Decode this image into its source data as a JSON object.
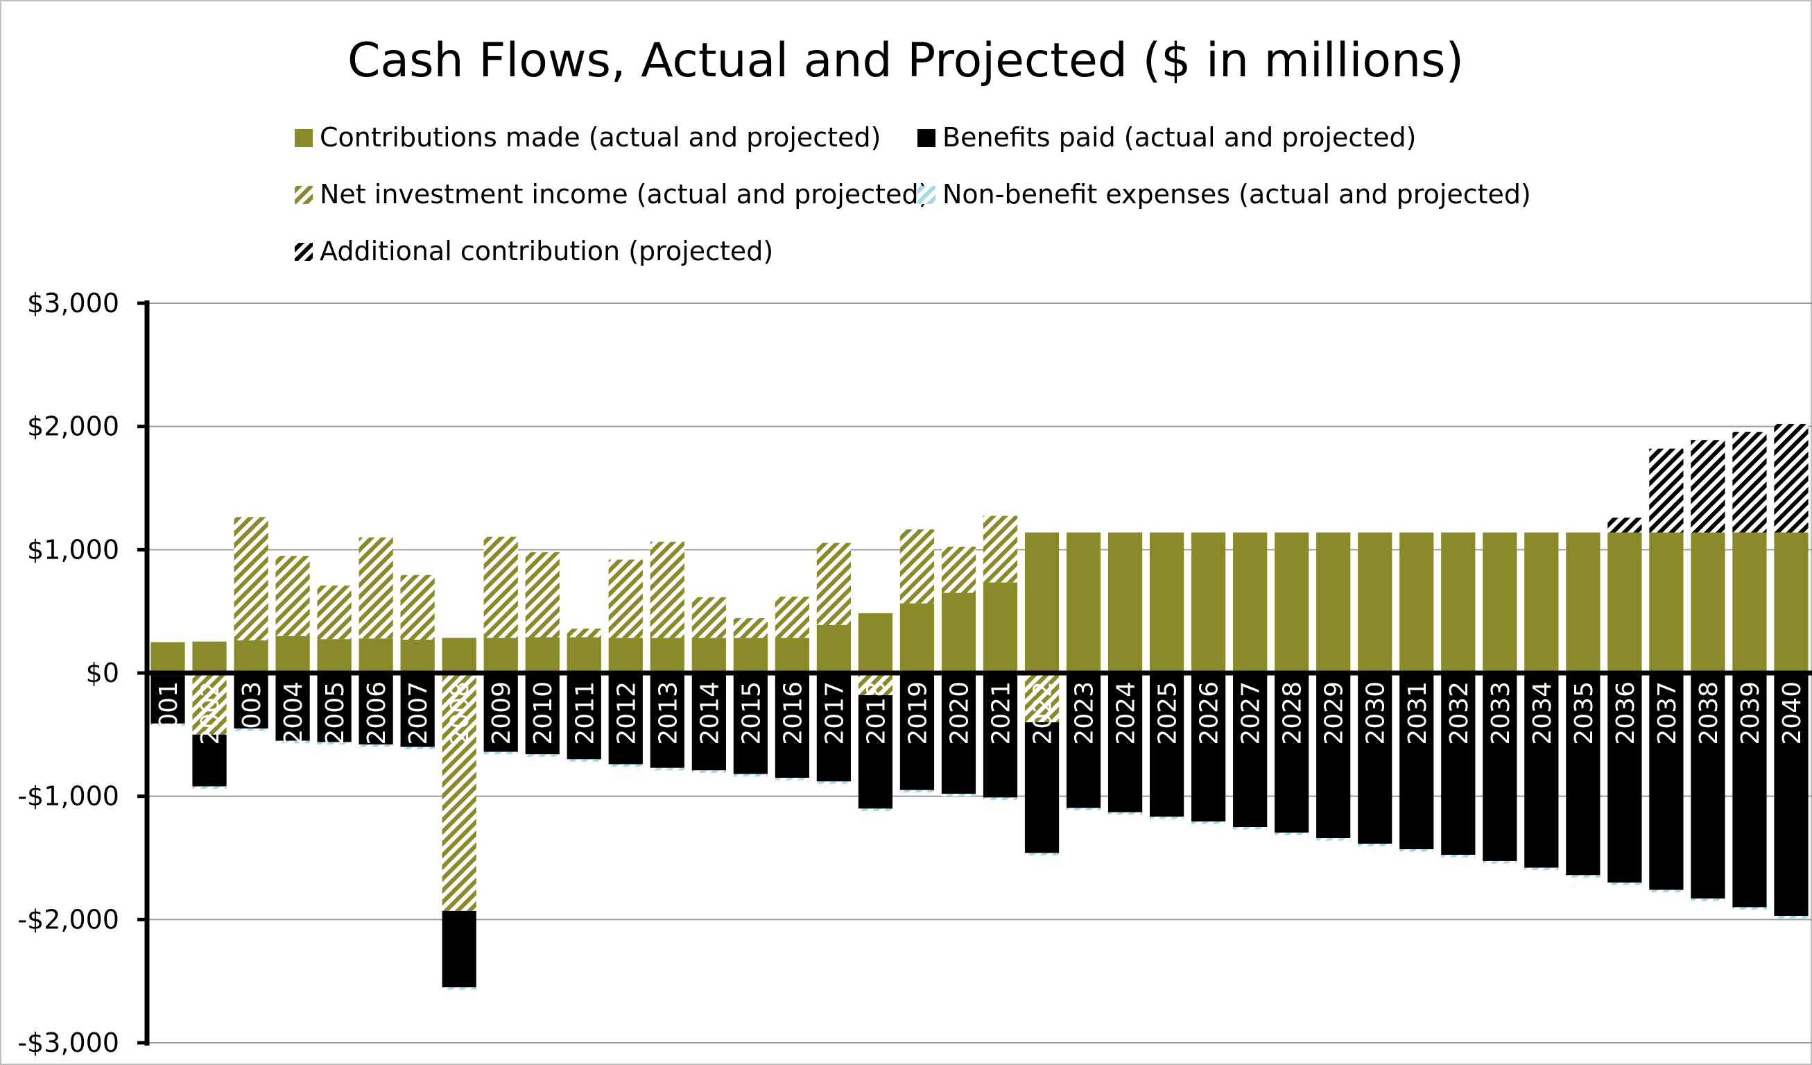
{
  "chart_data": {
    "type": "bar",
    "stacked": true,
    "title": "Cash Flows, Actual and Projected ($ in millions)",
    "xlabel": "",
    "ylabel": "",
    "ylim": [
      -3000,
      3000
    ],
    "yticks": [
      3000,
      2000,
      1000,
      0,
      -1000,
      -2000,
      -3000
    ],
    "ytick_labels": [
      "$3,000",
      "$2,000",
      "$1,000",
      "$0",
      "-$1,000",
      "-$2,000",
      "-$3,000"
    ],
    "grid": true,
    "legend_position": "top",
    "categories": [
      "2001",
      "2002",
      "2003",
      "2004",
      "2005",
      "2006",
      "2007",
      "2008",
      "2009",
      "2010",
      "2011",
      "2012",
      "2013",
      "2014",
      "2015",
      "2016",
      "2017",
      "2018",
      "2019",
      "2020",
      "2021",
      "2022",
      "2023",
      "2024",
      "2025",
      "2026",
      "2027",
      "2028",
      "2029",
      "2030",
      "2031",
      "2032",
      "2033",
      "2034",
      "2035",
      "2036",
      "2037",
      "2038",
      "2039",
      "2040"
    ],
    "series": [
      {
        "name": "Contributions made (actual and projected)",
        "color": "#8a8a2a",
        "pattern": "solid",
        "values": [
          250,
          255,
          265,
          300,
          275,
          280,
          270,
          285,
          285,
          290,
          290,
          285,
          285,
          285,
          285,
          285,
          390,
          485,
          565,
          650,
          735,
          1140,
          1140,
          1140,
          1140,
          1140,
          1140,
          1140,
          1140,
          1140,
          1140,
          1140,
          1140,
          1140,
          1140,
          1140,
          1140,
          1140,
          1140,
          1140
        ]
      },
      {
        "name": "Benefits paid (actual and projected)",
        "color": "#000000",
        "pattern": "solid",
        "values": [
          -390,
          -420,
          -450,
          -550,
          -560,
          -580,
          -600,
          -620,
          -640,
          -660,
          -700,
          -740,
          -770,
          -790,
          -820,
          -850,
          -880,
          -920,
          -950,
          -980,
          -1010,
          -1060,
          -1095,
          -1130,
          -1165,
          -1205,
          -1250,
          -1295,
          -1340,
          -1385,
          -1430,
          -1475,
          -1525,
          -1580,
          -1640,
          -1700,
          -1760,
          -1830,
          -1900,
          -1970
        ]
      },
      {
        "name": "Net investment income (actual and projected)",
        "color": "#8a8a2a",
        "pattern": "hatch",
        "values": [
          -20,
          -500,
          1000,
          650,
          435,
          820,
          525,
          -1930,
          820,
          690,
          70,
          635,
          780,
          330,
          160,
          335,
          665,
          -180,
          600,
          375,
          540,
          -400,
          0,
          0,
          0,
          0,
          0,
          0,
          0,
          0,
          0,
          0,
          0,
          0,
          0,
          0,
          0,
          0,
          0,
          0
        ]
      },
      {
        "name": "Non-benefit expenses (actual and projected)",
        "color": "#a8d8e8",
        "pattern": "hatch",
        "values": [
          -20,
          -20,
          -20,
          -20,
          -20,
          -20,
          -20,
          -20,
          -20,
          -20,
          -20,
          -20,
          -20,
          -20,
          -20,
          -20,
          -20,
          -20,
          -20,
          -20,
          -20,
          -20,
          -20,
          -20,
          -20,
          -20,
          -20,
          -20,
          -20,
          -20,
          -20,
          -20,
          -20,
          -20,
          -20,
          -20,
          -20,
          -20,
          -20,
          -20
        ]
      },
      {
        "name": "Additional contribution (projected)",
        "color": "#000000",
        "pattern": "hatch",
        "values": [
          0,
          0,
          0,
          0,
          0,
          0,
          0,
          0,
          0,
          0,
          0,
          0,
          0,
          0,
          0,
          0,
          0,
          0,
          0,
          0,
          0,
          0,
          0,
          0,
          0,
          0,
          0,
          0,
          0,
          0,
          0,
          0,
          0,
          0,
          0,
          120,
          680,
          750,
          815,
          880
        ]
      }
    ]
  }
}
